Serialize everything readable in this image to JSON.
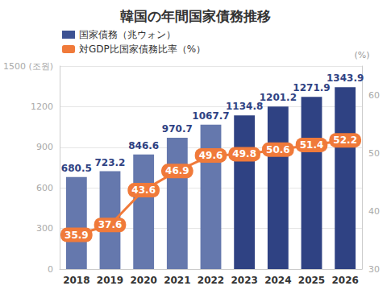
{
  "chart_data": {
    "type": "bar",
    "title": "韓国の年間国家債務推移",
    "categories": [
      "2018",
      "2019",
      "2020",
      "2021",
      "2022",
      "2023",
      "2024",
      "2025",
      "2026"
    ],
    "series": [
      {
        "name": "国家債務（兆ウォン）",
        "type": "bar",
        "color": "#3d5293",
        "colors": [
          "#6578ad",
          "#6578ad",
          "#6578ad",
          "#6578ad",
          "#6578ad",
          "#2f4283",
          "#2f4283",
          "#2f4283",
          "#2f4283"
        ],
        "values": [
          680.5,
          723.2,
          846.6,
          970.7,
          1067.7,
          1134.8,
          1201.2,
          1271.9,
          1343.9
        ]
      },
      {
        "name": "対GDP比国家債務比率（%）",
        "type": "line",
        "color": "#f07a3a",
        "axis": "y2",
        "marker": "circle",
        "values": [
          35.9,
          37.6,
          43.6,
          46.9,
          49.6,
          49.8,
          50.6,
          51.4,
          52.2
        ]
      }
    ],
    "ylim": [
      0,
      1500
    ],
    "yticks": [
      0,
      300,
      600,
      900,
      1200,
      {
        "value": 1500,
        "label": "1500 (조원)"
      }
    ],
    "y2label": "(%)",
    "y2lim": [
      30,
      65
    ],
    "y2ticks": [
      30,
      40,
      50,
      60
    ],
    "grid": true,
    "legend": "top-left",
    "data_labels": true
  }
}
